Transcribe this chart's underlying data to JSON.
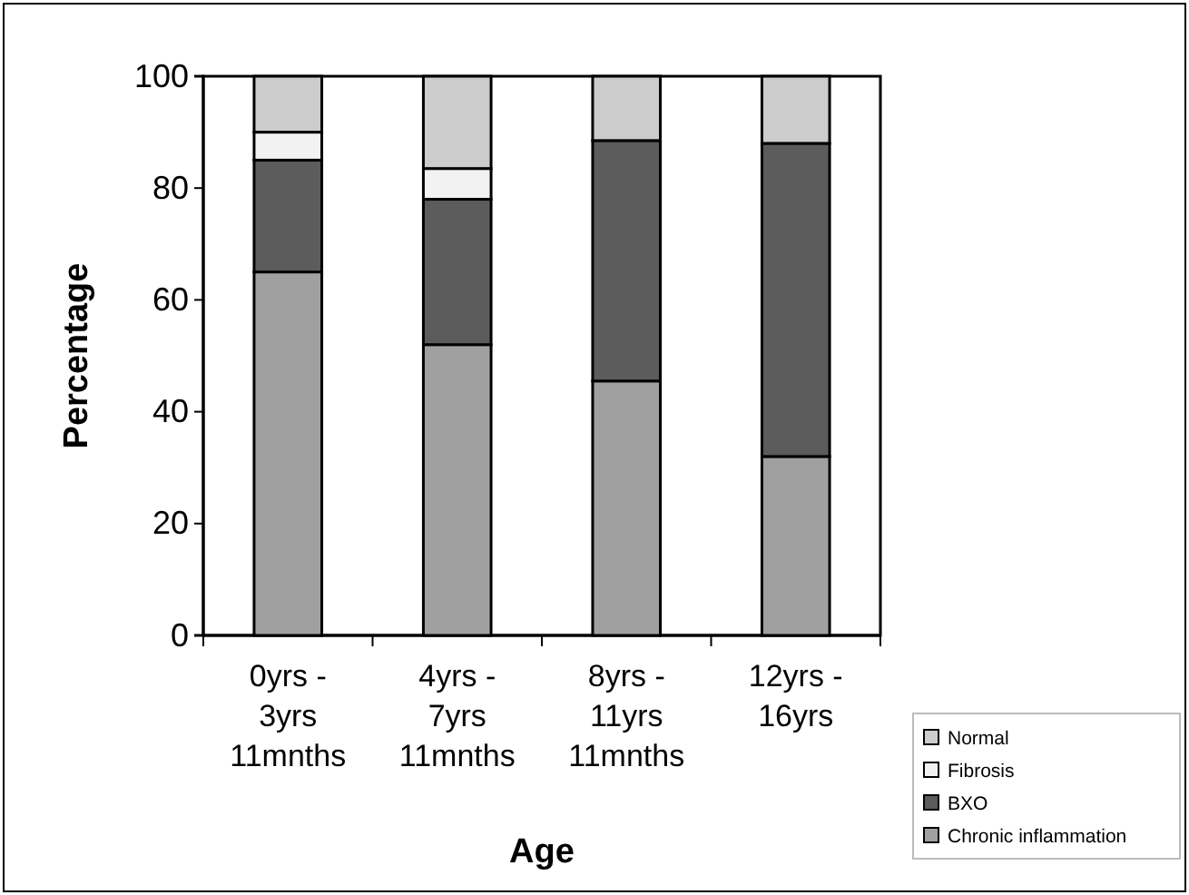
{
  "chart_data": {
    "type": "bar",
    "stacked": true,
    "xlabel": "Age",
    "ylabel": "Percentage",
    "categories": [
      "0yrs - 3yrs 11mnths",
      "4yrs - 7yrs 11mnths",
      "8yrs - 11yrs 11mnths",
      "12yrs - 16yrs"
    ],
    "series": [
      {
        "name": "Chronic inflammation",
        "color": "#a0a0a0",
        "values": [
          65,
          52,
          45.5,
          32
        ]
      },
      {
        "name": "BXO",
        "color": "#5c5c5c",
        "values": [
          20,
          26,
          43,
          56
        ]
      },
      {
        "name": "Fibrosis",
        "color": "#f2f2f2",
        "values": [
          5,
          5.5,
          0,
          0
        ]
      },
      {
        "name": "Normal",
        "color": "#cccccc",
        "values": [
          10,
          16.5,
          11.5,
          12
        ]
      }
    ],
    "ylim": [
      0,
      100
    ],
    "yticks": [
      0,
      20,
      40,
      60,
      80,
      100
    ],
    "grid": false,
    "legend": "bottom right"
  }
}
